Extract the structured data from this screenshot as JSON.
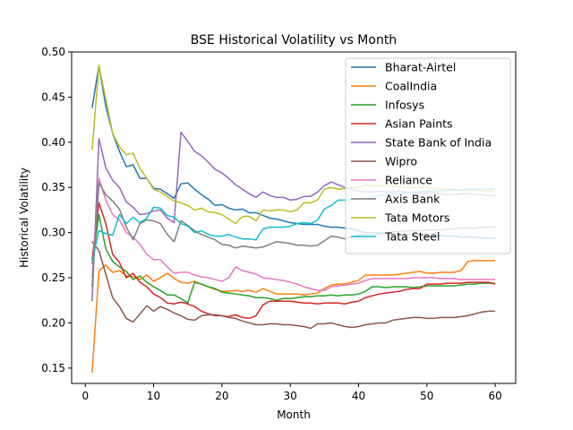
{
  "chart_data": {
    "type": "line",
    "title": "BSE Historical Volatility vs Month",
    "xlabel": "Month",
    "ylabel": "Historical Volatility",
    "xlim": [
      -2,
      63
    ],
    "ylim": [
      0.133,
      0.5
    ],
    "xticks": [
      0,
      10,
      20,
      30,
      40,
      50,
      60
    ],
    "yticks": [
      0.15,
      0.2,
      0.25,
      0.3,
      0.35,
      0.4,
      0.45,
      0.5
    ],
    "ytick_labels": [
      "0.15",
      "0.20",
      "0.25",
      "0.30",
      "0.35",
      "0.40",
      "0.45",
      "0.50"
    ],
    "grid": false,
    "legend_position": "top-right",
    "x": [
      1,
      2,
      3,
      4,
      5,
      6,
      7,
      8,
      9,
      10,
      11,
      12,
      13,
      14,
      15,
      16,
      17,
      18,
      19,
      20,
      21,
      22,
      23,
      24,
      25,
      26,
      27,
      28,
      29,
      30,
      31,
      32,
      33,
      34,
      35,
      36,
      37,
      38,
      39,
      40,
      41,
      42,
      43,
      44,
      45,
      46,
      47,
      48,
      49,
      50,
      51,
      52,
      53,
      54,
      55,
      56,
      57,
      58,
      59,
      60
    ],
    "series": [
      {
        "name": "Bharat-Airtel",
        "color": "#1f77b4",
        "values": [
          0.438,
          0.485,
          0.44,
          0.41,
          0.39,
          0.373,
          0.375,
          0.36,
          0.36,
          0.349,
          0.348,
          0.343,
          0.338,
          0.354,
          0.355,
          0.348,
          0.342,
          0.337,
          0.33,
          0.331,
          0.327,
          0.325,
          0.326,
          0.322,
          0.322,
          0.319,
          0.316,
          0.315,
          0.313,
          0.311,
          0.31,
          0.309,
          0.309,
          0.309,
          0.307,
          0.306,
          0.306,
          0.305,
          0.304,
          0.302,
          0.3,
          0.3,
          0.3,
          0.299,
          0.299,
          0.298,
          0.298,
          0.298,
          0.297,
          0.296,
          0.296,
          0.297,
          0.296,
          0.296,
          0.295,
          0.295,
          0.295,
          0.294,
          0.294,
          0.294
        ]
      },
      {
        "name": "CoalIndia",
        "color": "#ff7f0e",
        "values": [
          0.145,
          0.258,
          0.264,
          0.256,
          0.258,
          0.252,
          0.251,
          0.248,
          0.253,
          0.246,
          0.25,
          0.255,
          0.249,
          0.245,
          0.244,
          0.246,
          0.243,
          0.24,
          0.237,
          0.235,
          0.235,
          0.236,
          0.235,
          0.236,
          0.234,
          0.238,
          0.235,
          0.232,
          0.232,
          0.232,
          0.232,
          0.231,
          0.232,
          0.233,
          0.238,
          0.242,
          0.243,
          0.243,
          0.245,
          0.247,
          0.253,
          0.253,
          0.253,
          0.253,
          0.253,
          0.254,
          0.255,
          0.256,
          0.257,
          0.255,
          0.255,
          0.256,
          0.256,
          0.256,
          0.258,
          0.268,
          0.269,
          0.269,
          0.269,
          0.269
        ]
      },
      {
        "name": "Infosys",
        "color": "#2ca02c",
        "values": [
          0.265,
          0.32,
          0.282,
          0.268,
          0.262,
          0.257,
          0.248,
          0.252,
          0.245,
          0.24,
          0.236,
          0.231,
          0.231,
          0.227,
          0.222,
          0.245,
          0.243,
          0.24,
          0.238,
          0.234,
          0.233,
          0.232,
          0.231,
          0.23,
          0.228,
          0.228,
          0.227,
          0.225,
          0.227,
          0.227,
          0.228,
          0.229,
          0.229,
          0.23,
          0.23,
          0.231,
          0.23,
          0.231,
          0.231,
          0.232,
          0.235,
          0.24,
          0.24,
          0.239,
          0.24,
          0.24,
          0.24,
          0.239,
          0.24,
          0.241,
          0.241,
          0.241,
          0.241,
          0.241,
          0.242,
          0.243,
          0.243,
          0.244,
          0.244,
          0.244
        ]
      },
      {
        "name": "Asian Paints",
        "color": "#d62728",
        "values": [
          0.27,
          0.333,
          0.31,
          0.276,
          0.267,
          0.25,
          0.255,
          0.245,
          0.24,
          0.232,
          0.228,
          0.222,
          0.221,
          0.223,
          0.221,
          0.218,
          0.213,
          0.21,
          0.208,
          0.208,
          0.207,
          0.209,
          0.206,
          0.205,
          0.208,
          0.22,
          0.224,
          0.224,
          0.224,
          0.224,
          0.223,
          0.222,
          0.222,
          0.221,
          0.222,
          0.222,
          0.222,
          0.221,
          0.223,
          0.224,
          0.228,
          0.23,
          0.232,
          0.233,
          0.234,
          0.235,
          0.237,
          0.238,
          0.238,
          0.243,
          0.243,
          0.243,
          0.244,
          0.244,
          0.244,
          0.245,
          0.245,
          0.245,
          0.245,
          0.243
        ]
      },
      {
        "name": "State Bank of India",
        "color": "#9467bd",
        "values": [
          0.224,
          0.404,
          0.372,
          0.358,
          0.35,
          0.334,
          0.328,
          0.32,
          0.321,
          0.324,
          0.325,
          0.316,
          0.311,
          0.411,
          0.401,
          0.39,
          0.385,
          0.378,
          0.37,
          0.366,
          0.36,
          0.353,
          0.348,
          0.343,
          0.339,
          0.345,
          0.341,
          0.339,
          0.339,
          0.336,
          0.337,
          0.34,
          0.34,
          0.345,
          0.352,
          0.356,
          0.353,
          0.35,
          0.348,
          0.346,
          0.345,
          0.345,
          0.346,
          0.345,
          0.345,
          0.346,
          0.345,
          0.344,
          0.344,
          0.344,
          0.344,
          0.343,
          0.342,
          0.342,
          0.343,
          0.343,
          0.342,
          0.342,
          0.341,
          0.341
        ]
      },
      {
        "name": "Wipro",
        "color": "#8c564b",
        "values": [
          0.29,
          0.28,
          0.254,
          0.228,
          0.218,
          0.205,
          0.201,
          0.21,
          0.219,
          0.213,
          0.218,
          0.215,
          0.211,
          0.208,
          0.204,
          0.203,
          0.208,
          0.209,
          0.209,
          0.208,
          0.206,
          0.205,
          0.202,
          0.2,
          0.198,
          0.198,
          0.199,
          0.199,
          0.198,
          0.198,
          0.197,
          0.196,
          0.194,
          0.199,
          0.199,
          0.2,
          0.198,
          0.196,
          0.195,
          0.196,
          0.198,
          0.199,
          0.2,
          0.2,
          0.203,
          0.204,
          0.205,
          0.206,
          0.206,
          0.205,
          0.205,
          0.206,
          0.206,
          0.206,
          0.207,
          0.208,
          0.21,
          0.212,
          0.213,
          0.213
        ]
      },
      {
        "name": "Reliance",
        "color": "#e377c2",
        "values": [
          0.25,
          0.36,
          0.336,
          0.32,
          0.314,
          0.3,
          0.295,
          0.287,
          0.276,
          0.27,
          0.27,
          0.262,
          0.255,
          0.256,
          0.256,
          0.253,
          0.251,
          0.25,
          0.248,
          0.246,
          0.25,
          0.262,
          0.258,
          0.256,
          0.254,
          0.25,
          0.249,
          0.248,
          0.247,
          0.245,
          0.243,
          0.24,
          0.238,
          0.236,
          0.236,
          0.24,
          0.241,
          0.242,
          0.243,
          0.244,
          0.247,
          0.249,
          0.249,
          0.249,
          0.249,
          0.249,
          0.249,
          0.25,
          0.25,
          0.25,
          0.25,
          0.249,
          0.249,
          0.249,
          0.248,
          0.248,
          0.248,
          0.248,
          0.248,
          0.248
        ]
      },
      {
        "name": "Axis Bank",
        "color": "#7f7f7f",
        "values": [
          0.24,
          0.355,
          0.342,
          0.335,
          0.326,
          0.306,
          0.292,
          0.31,
          0.314,
          0.313,
          0.31,
          0.298,
          0.29,
          0.313,
          0.308,
          0.302,
          0.298,
          0.295,
          0.292,
          0.287,
          0.286,
          0.283,
          0.285,
          0.284,
          0.283,
          0.284,
          0.287,
          0.29,
          0.289,
          0.288,
          0.286,
          0.286,
          0.285,
          0.286,
          0.291,
          0.296,
          0.295,
          0.293,
          0.295,
          0.297,
          0.298,
          0.298,
          0.298,
          0.299,
          0.301,
          0.301,
          0.302,
          0.302,
          0.302,
          0.303,
          0.303,
          0.303,
          0.304,
          0.304,
          0.305,
          0.305,
          0.305,
          0.306,
          0.306,
          0.306
        ]
      },
      {
        "name": "Tata Motors",
        "color": "#bcbd22",
        "values": [
          0.392,
          0.485,
          0.448,
          0.41,
          0.395,
          0.386,
          0.388,
          0.371,
          0.36,
          0.348,
          0.345,
          0.34,
          0.335,
          0.333,
          0.33,
          0.325,
          0.327,
          0.323,
          0.322,
          0.32,
          0.315,
          0.31,
          0.318,
          0.318,
          0.313,
          0.325,
          0.324,
          0.325,
          0.325,
          0.323,
          0.325,
          0.333,
          0.333,
          0.336,
          0.348,
          0.35,
          0.348,
          0.349,
          0.35,
          0.35,
          0.353,
          0.352,
          0.352,
          0.352,
          0.351,
          0.351,
          0.35,
          0.35,
          0.35,
          0.35,
          0.349,
          0.348,
          0.348,
          0.348,
          0.347,
          0.347,
          0.347,
          0.346,
          0.346,
          0.346
        ]
      },
      {
        "name": "Tata Steel",
        "color": "#17becf",
        "values": [
          0.268,
          0.302,
          0.299,
          0.297,
          0.32,
          0.31,
          0.317,
          0.311,
          0.316,
          0.328,
          0.327,
          0.319,
          0.317,
          0.31,
          0.307,
          0.3,
          0.302,
          0.298,
          0.296,
          0.296,
          0.298,
          0.295,
          0.293,
          0.293,
          0.292,
          0.304,
          0.306,
          0.306,
          0.306,
          0.307,
          0.31,
          0.311,
          0.31,
          0.314,
          0.326,
          0.33,
          0.336,
          0.336,
          0.337,
          0.338,
          0.338,
          0.339,
          0.341,
          0.342,
          0.343,
          0.343,
          0.344,
          0.345,
          0.345,
          0.346,
          0.346,
          0.346,
          0.347,
          0.347,
          0.347,
          0.348,
          0.348,
          0.348,
          0.348,
          0.349
        ]
      }
    ]
  }
}
